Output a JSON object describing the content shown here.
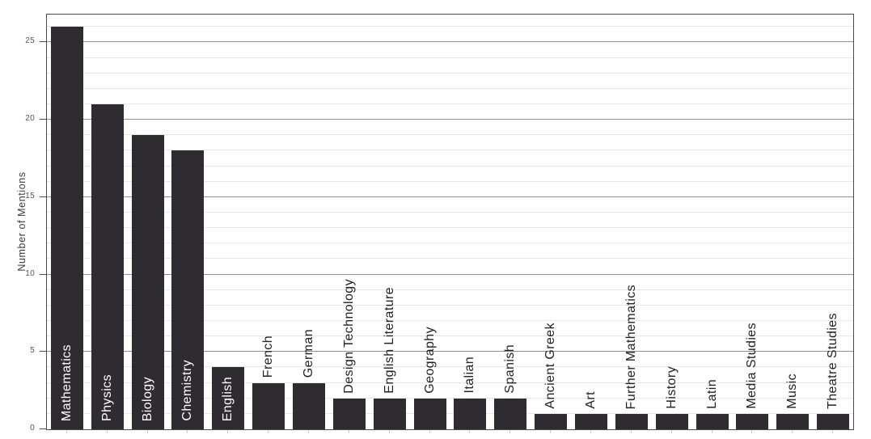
{
  "chart_data": {
    "type": "bar",
    "title": "",
    "xlabel": "",
    "ylabel": "Number of Mentions",
    "categories": [
      "Mathematics",
      "Physics",
      "Biology",
      "Chemistry",
      "English",
      "French",
      "German",
      "Design Technology",
      "English Literature",
      "Geography",
      "Italian",
      "Spanish",
      "Ancient Greek",
      "Art",
      "Further Mathematics",
      "History",
      "Latin",
      "Media Studies",
      "Music",
      "Theatre Studies"
    ],
    "values": [
      26,
      21,
      19,
      18,
      4,
      3,
      3,
      2,
      2,
      2,
      2,
      2,
      1,
      1,
      1,
      1,
      1,
      1,
      1,
      1
    ],
    "yticks": [
      0,
      5,
      10,
      15,
      20,
      25
    ],
    "ylim": [
      0,
      26.8
    ],
    "grid": {
      "orientation": "horizontal",
      "minor_step": 1,
      "major_step": 5
    },
    "legend": "none",
    "label_placement": "inside bar (white) when value >= 4, above bar (dark) otherwise, rotated 90deg reading bottom-to-top",
    "inside_label_min_value": 4,
    "colors": {
      "bar": "#2e2c30",
      "inside_label": "#ffffff",
      "outside_label": "#222222",
      "axis_frame": "#4a4a4a",
      "tick_label": "#555555",
      "grid_minor": "#e7e7e7",
      "grid_major": "#8f8f8f",
      "background": "#ffffff"
    }
  }
}
